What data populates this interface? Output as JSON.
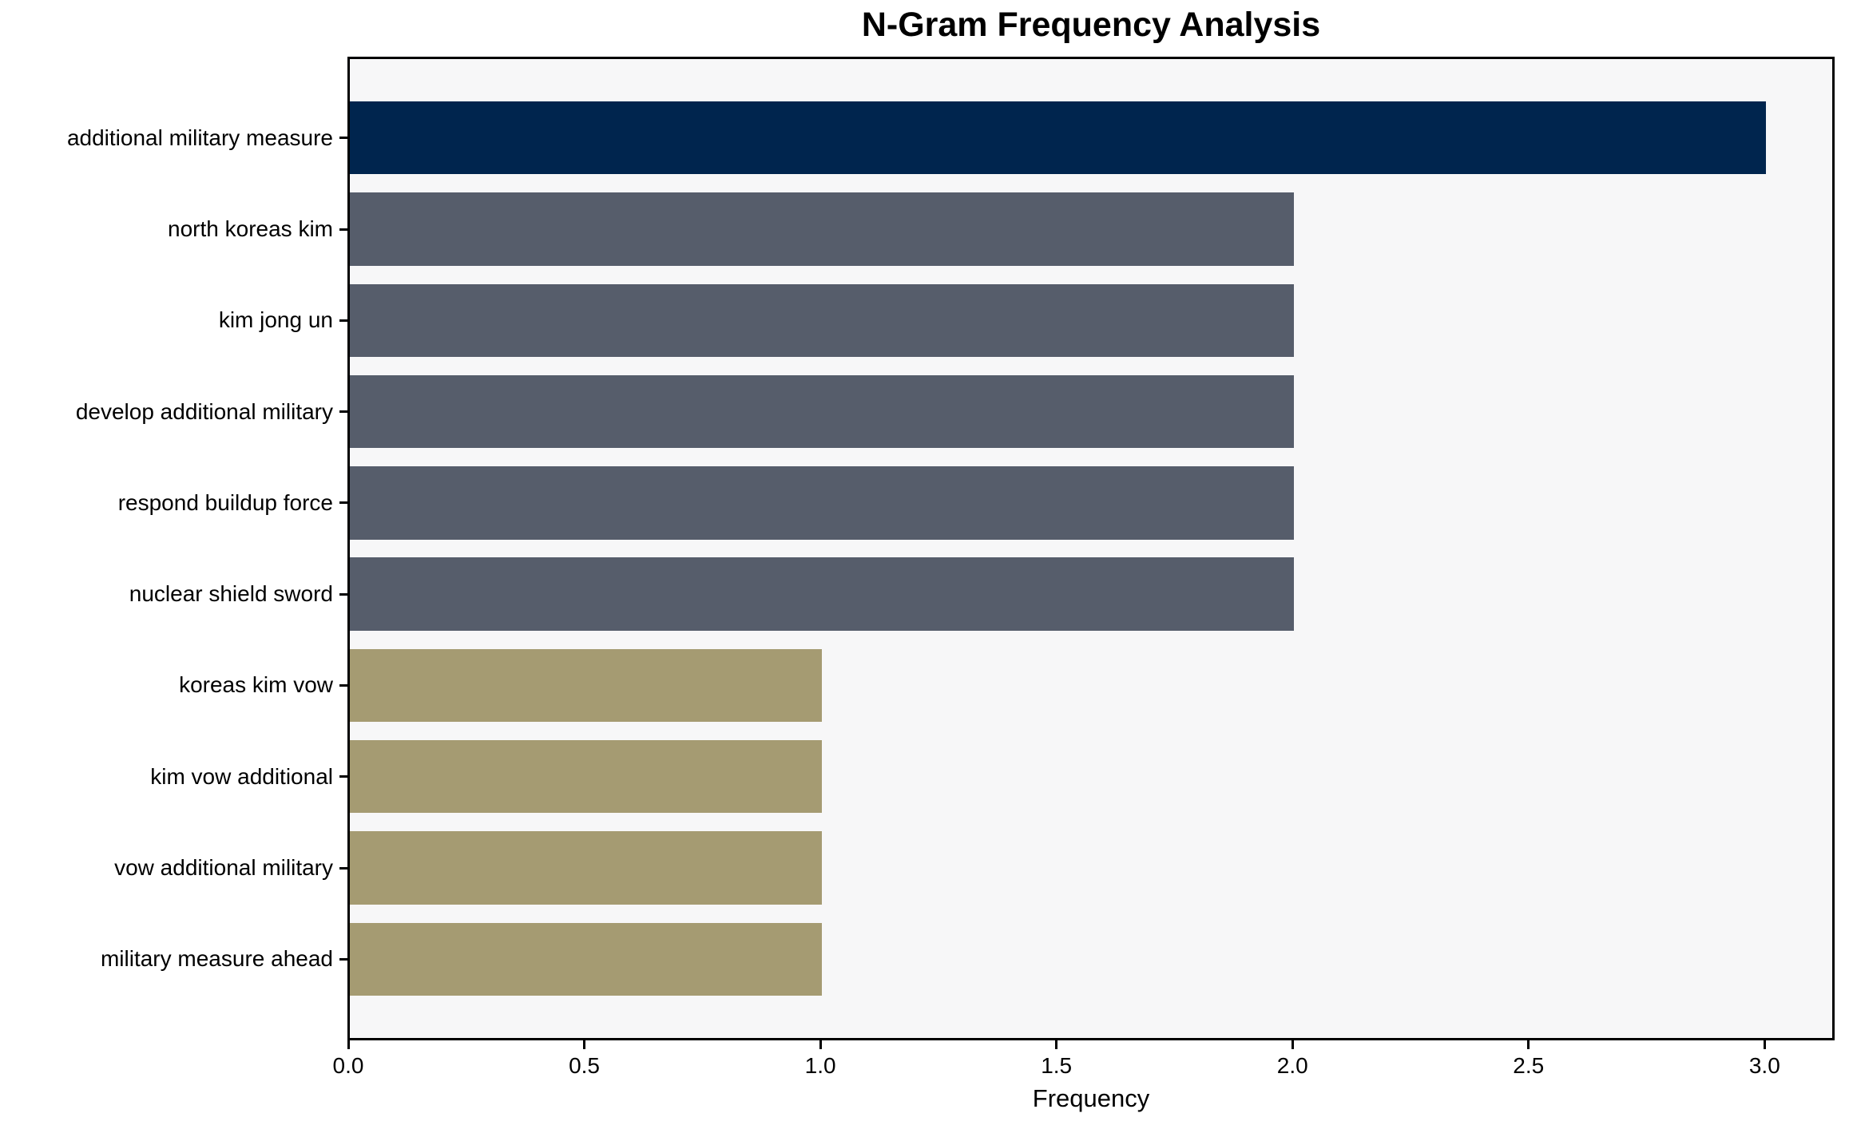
{
  "chart_data": {
    "type": "bar",
    "orientation": "horizontal",
    "title": "N-Gram Frequency Analysis",
    "xlabel": "Frequency",
    "ylabel": "",
    "categories": [
      "additional military measure",
      "north koreas kim",
      "kim jong un",
      "develop additional military",
      "respond buildup force",
      "nuclear shield sword",
      "koreas kim vow",
      "kim vow additional",
      "vow additional military",
      "military measure ahead"
    ],
    "values": [
      3,
      2,
      2,
      2,
      2,
      2,
      1,
      1,
      1,
      1
    ],
    "bar_colors": [
      "#00254e",
      "#565d6b",
      "#565d6b",
      "#565d6b",
      "#565d6b",
      "#565d6b",
      "#a59b72",
      "#a59b72",
      "#a59b72",
      "#a59b72"
    ],
    "xticks": [
      0.0,
      0.5,
      1.0,
      1.5,
      2.0,
      2.5,
      3.0
    ],
    "xtick_labels": [
      "0.0",
      "0.5",
      "1.0",
      "1.5",
      "2.0",
      "2.5",
      "3.0"
    ],
    "xlim": [
      0,
      3.15
    ],
    "grid": false,
    "legend": false,
    "colors": {
      "highlight_navy": "#00254e",
      "mid_slate": "#565d6b",
      "low_khaki": "#a59b72",
      "plot_background": "#f7f7f8",
      "figure_background": "#ffffff",
      "spine": "#000000",
      "text": "#000000"
    }
  }
}
